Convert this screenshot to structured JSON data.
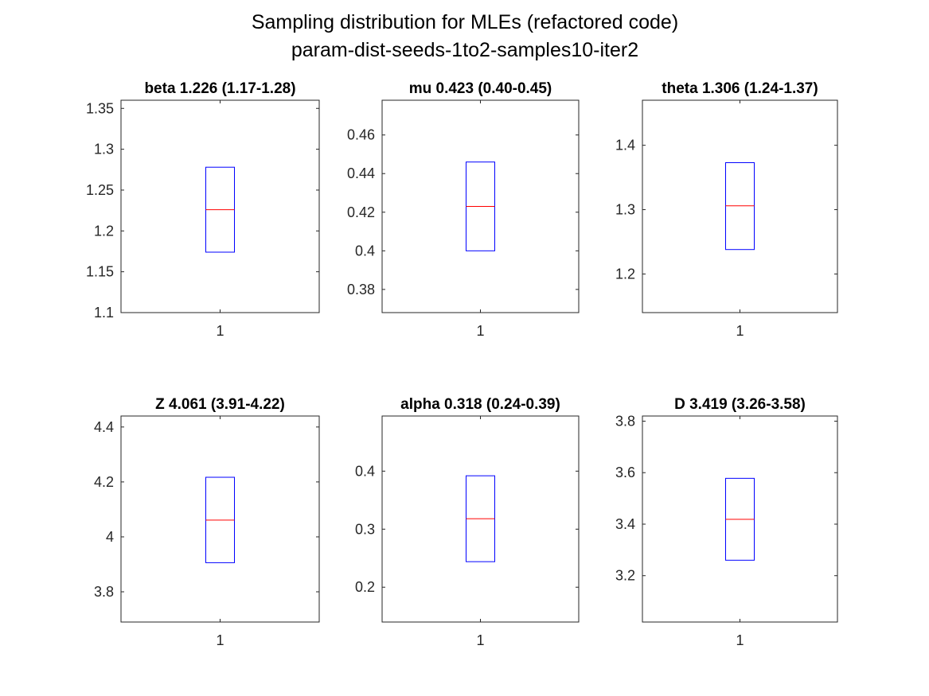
{
  "figure": {
    "title_line1": "Sampling distribution for MLEs (refactored code)",
    "title_line2": "param-dist-seeds-1to2-samples10-iter2"
  },
  "colors": {
    "box": "#0000ff",
    "median": "#ff0000",
    "axes": "#262626"
  },
  "chart_data": [
    {
      "type": "box",
      "title": "beta 1.226 (1.17-1.28)",
      "categories": [
        "1"
      ],
      "ylim": [
        1.1,
        1.36
      ],
      "yticks": [
        1.1,
        1.15,
        1.2,
        1.25,
        1.3,
        1.35
      ],
      "ytick_labels": [
        "1.1",
        "1.15",
        "1.2",
        "1.25",
        "1.3",
        "1.35"
      ],
      "box": {
        "q1": 1.174,
        "median": 1.226,
        "q3": 1.278
      }
    },
    {
      "type": "box",
      "title": "mu 0.423 (0.40-0.45)",
      "categories": [
        "1"
      ],
      "ylim": [
        0.368,
        0.478
      ],
      "yticks": [
        0.38,
        0.4,
        0.42,
        0.44,
        0.46
      ],
      "ytick_labels": [
        "0.38",
        "0.4",
        "0.42",
        "0.44",
        "0.46"
      ],
      "box": {
        "q1": 0.4,
        "median": 0.423,
        "q3": 0.446
      }
    },
    {
      "type": "box",
      "title": "theta 1.306 (1.24-1.37)",
      "categories": [
        "1"
      ],
      "ylim": [
        1.14,
        1.47
      ],
      "yticks": [
        1.2,
        1.3,
        1.4
      ],
      "ytick_labels": [
        "1.2",
        "1.3",
        "1.4"
      ],
      "box": {
        "q1": 1.238,
        "median": 1.306,
        "q3": 1.373
      }
    },
    {
      "type": "box",
      "title": "Z 4.061 (3.91-4.22)",
      "categories": [
        "1"
      ],
      "ylim": [
        3.69,
        4.44
      ],
      "yticks": [
        3.8,
        4.0,
        4.2,
        4.4
      ],
      "ytick_labels": [
        "3.8",
        "4",
        "4.2",
        "4.4"
      ],
      "box": {
        "q1": 3.906,
        "median": 4.061,
        "q3": 4.217
      }
    },
    {
      "type": "box",
      "title": "alpha 0.318 (0.24-0.39)",
      "categories": [
        "1"
      ],
      "ylim": [
        0.14,
        0.495
      ],
      "yticks": [
        0.2,
        0.3,
        0.4
      ],
      "ytick_labels": [
        "0.2",
        "0.3",
        "0.4"
      ],
      "box": {
        "q1": 0.244,
        "median": 0.318,
        "q3": 0.392
      }
    },
    {
      "type": "box",
      "title": "D 3.419 (3.26-3.58)",
      "categories": [
        "1"
      ],
      "ylim": [
        3.02,
        3.82
      ],
      "yticks": [
        3.2,
        3.4,
        3.6,
        3.8
      ],
      "ytick_labels": [
        "3.2",
        "3.4",
        "3.6",
        "3.8"
      ],
      "box": {
        "q1": 3.26,
        "median": 3.419,
        "q3": 3.578
      }
    }
  ]
}
